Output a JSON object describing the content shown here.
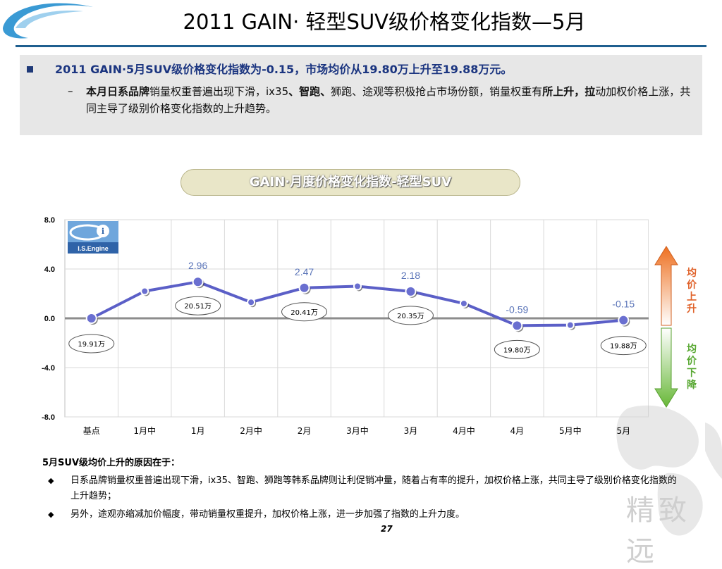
{
  "slide": {
    "title": "2011 GAIN· 轻型SUV级价格变化指数—5月",
    "summary": "2011 GAIN·5月SUV级价格变化指数为-0.15，市场均价从19.80万上升至19.88万元。",
    "detail_bold1": "本月日系品牌",
    "detail_text1": "销量权重普遍出现下滑，ix35",
    "detail_bold2": "、智跑、",
    "detail_text2": "狮跑、途观等积极抢占市场份额，销量权重有",
    "detail_bold3": "所上升，拉",
    "detail_text3": "动加权价格上涨，共同主导了级别价格变化指数的上升趋势。",
    "chart_header": "GAIN·月度价格变化指数-轻型SUV",
    "logo_text": "I.S.Engine",
    "up_label": "均价上升",
    "down_label": "均价下降",
    "reasons_title": "5月SUV级均价上升的原因在于：",
    "reasons": [
      "日系品牌销量权重普遍出现下滑，ix35、智跑、狮跑等韩系品牌则让利促销冲量，随着占有率的提升，加权价格上涨，共同主导了级别价格变化指数的上升趋势；",
      "另外，途观亦缩减加价幅度，带动销量权重提升，加权价格上涨，进一步加强了指数的上升力度。"
    ],
    "page_number": "27",
    "watermark": "精致远"
  },
  "chart_data": {
    "type": "line",
    "categories": [
      "基点",
      "1月中",
      "1月",
      "2月中",
      "2月",
      "3月中",
      "3月",
      "4月中",
      "4月",
      "5月中",
      "5月"
    ],
    "series": [
      {
        "values": [
          0.0,
          2.2,
          2.96,
          1.3,
          2.47,
          2.6,
          2.18,
          1.2,
          -0.59,
          -0.55,
          -0.15
        ]
      }
    ],
    "ylim": [
      -8.0,
      8.0
    ],
    "yticks": [
      "8.0",
      "4.0",
      "0.0",
      "-4.0",
      "-8.0"
    ],
    "value_labels": [
      {
        "index": 2,
        "text": "2.96"
      },
      {
        "index": 4,
        "text": "2.47"
      },
      {
        "index": 6,
        "text": "2.18"
      },
      {
        "index": 8,
        "text": "-0.59"
      },
      {
        "index": 10,
        "text": "-0.15"
      }
    ],
    "price_callouts": [
      {
        "index": 0,
        "text": "19.91万"
      },
      {
        "index": 2,
        "text": "20.51万"
      },
      {
        "index": 4,
        "text": "20.41万"
      },
      {
        "index": 6,
        "text": "20.35万"
      },
      {
        "index": 8,
        "text": "19.80万"
      },
      {
        "index": 10,
        "text": "19.88万"
      }
    ],
    "line_color": "#5b5fc7",
    "grid": true
  }
}
